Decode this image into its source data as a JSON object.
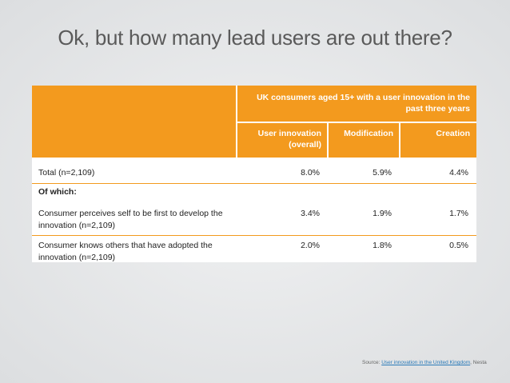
{
  "title": "Ok, but how many lead users are out there?",
  "table": {
    "group_header": "UK consumers aged 15+ with a user innovation in the past three years",
    "columns": [
      "User innovation (overall)",
      "Modification",
      "Creation"
    ],
    "rows": [
      {
        "label": "Total (n=2,109)",
        "values": [
          "8.0%",
          "5.9%",
          "4.4%"
        ]
      },
      {
        "label": "Of which:"
      },
      {
        "label": "Consumer perceives self to be first to develop the innovation (n=2,109)",
        "values": [
          "3.4%",
          "1.9%",
          "1.7%"
        ]
      },
      {
        "label": "Consumer knows others that have adopted the innovation (n=2,109)",
        "values": [
          "2.0%",
          "1.8%",
          "0.5%"
        ]
      }
    ]
  },
  "source": {
    "prefix": "Source:",
    "link": "User innovation in the United Kingdom",
    "suffix": ", Nesta"
  }
}
